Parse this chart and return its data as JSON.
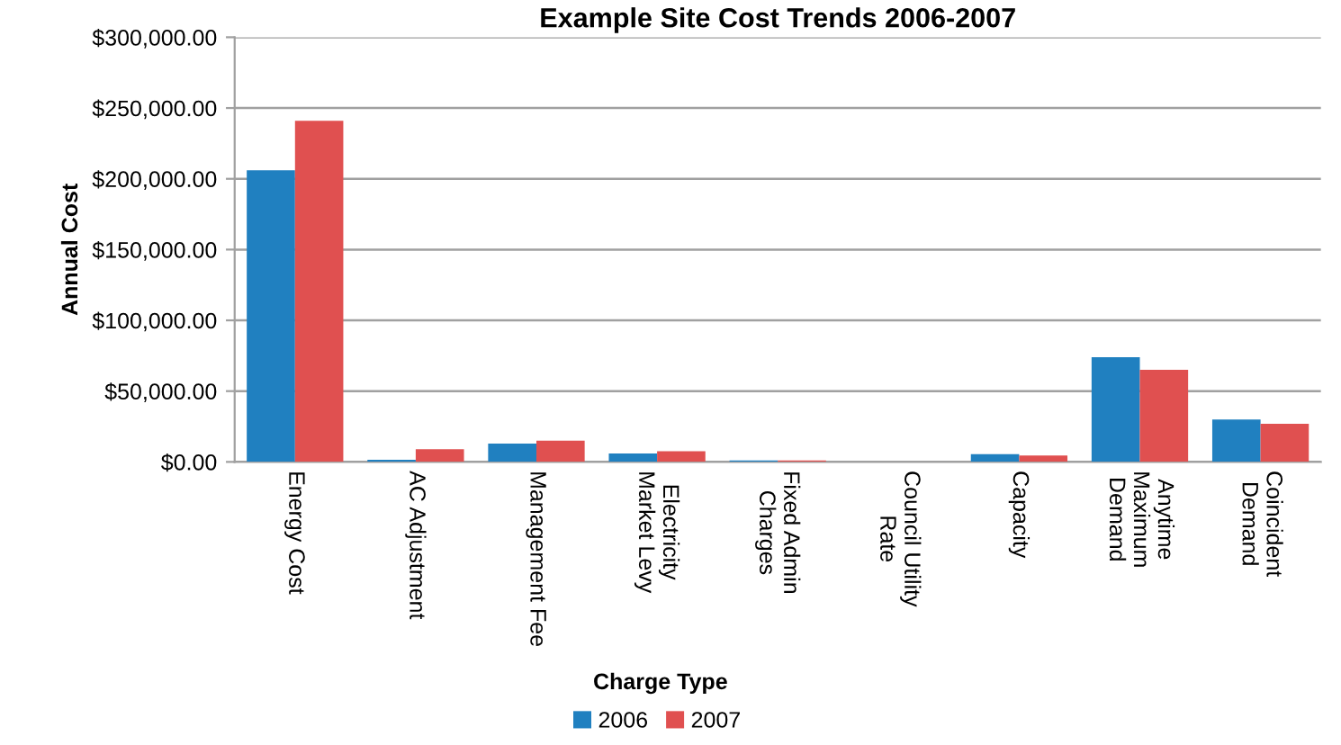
{
  "chart_data": {
    "type": "bar",
    "title": "Example Site Cost Trends 2006-2007",
    "xlabel": "Charge Type",
    "ylabel": "Annual Cost",
    "categories": [
      "Energy Cost",
      "AC Adjustment",
      "Management Fee",
      "Electricity\nMarket Levy",
      "Fixed Admin\nCharges",
      "Council Utility\nRate",
      "Capacity",
      "Anytime\nMaximum\nDemand",
      "Coincident\nDemand"
    ],
    "series": [
      {
        "name": "2006",
        "color": "#2080c0",
        "values": [
          206000,
          1500,
          13000,
          6000,
          1000,
          0,
          5500,
          74000,
          30000
        ]
      },
      {
        "name": "2007",
        "color": "#e05050",
        "values": [
          241000,
          9000,
          15000,
          7500,
          1000,
          0,
          4500,
          65000,
          27000
        ]
      }
    ],
    "ylim": [
      0,
      300000
    ],
    "yticks": [
      {
        "value": 0,
        "label": "$0.00"
      },
      {
        "value": 50000,
        "label": "$50,000.00"
      },
      {
        "value": 100000,
        "label": "$100,000.00"
      },
      {
        "value": 150000,
        "label": "$150,000.00"
      },
      {
        "value": 200000,
        "label": "$200,000.00"
      },
      {
        "value": 250000,
        "label": "$250,000.00"
      },
      {
        "value": 300000,
        "label": "$300,000.00"
      }
    ],
    "grid": "y",
    "legend": "bottom"
  }
}
